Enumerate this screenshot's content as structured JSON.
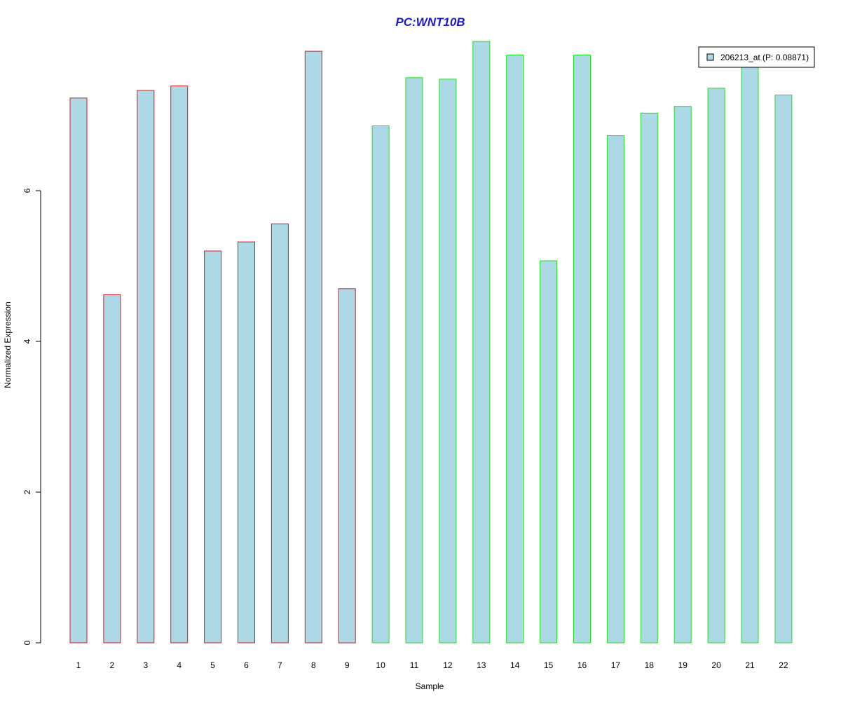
{
  "chart_data": {
    "type": "bar",
    "title": "PC:WNT10B",
    "xlabel": "Sample",
    "ylabel": "Normalized Expression",
    "categories": [
      "1",
      "2",
      "3",
      "4",
      "5",
      "6",
      "7",
      "8",
      "9",
      "10",
      "11",
      "12",
      "13",
      "14",
      "15",
      "16",
      "17",
      "18",
      "19",
      "20",
      "21",
      "22"
    ],
    "series": [
      {
        "name": "206213_at (P: 0.08871)",
        "values": [
          7.23,
          4.62,
          7.33,
          7.39,
          5.2,
          5.32,
          5.56,
          7.85,
          4.7,
          6.86,
          7.5,
          7.48,
          7.98,
          7.8,
          5.07,
          7.8,
          6.73,
          7.03,
          7.12,
          7.36,
          7.65,
          7.27
        ]
      }
    ],
    "group_outline": [
      "red",
      "red",
      "red",
      "red",
      "red",
      "red",
      "red",
      "red",
      "red",
      "green",
      "green",
      "green",
      "green",
      "green",
      "green",
      "green",
      "green",
      "green",
      "green",
      "green",
      "green",
      "green"
    ],
    "yticks": [
      0,
      2,
      4,
      6
    ],
    "ylim": [
      0,
      8
    ],
    "legend": {
      "placement": "top-right",
      "label": "206213_at (P: 0.08871)"
    },
    "grid": false,
    "colors": {
      "bar_fill": "#add8e6",
      "group_a_outline": "#e0141c",
      "group_b_outline": "#21e021",
      "title": "#1a1acc",
      "axis": "#000000"
    }
  }
}
